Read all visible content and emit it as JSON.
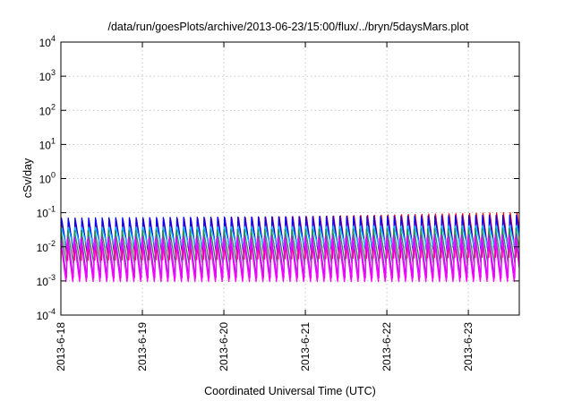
{
  "chart_data": {
    "type": "line",
    "title": "/data/run/goesPlots/archive/2013-06-23/15:00/flux/../bryn/5daysMars.plot",
    "xlabel": "Coordinated Universal Time (UTC)",
    "ylabel": "cSv/day",
    "yscale": "log",
    "ylim": [
      0.0001,
      10000
    ],
    "xlim": [
      "2013-06-18 00:00",
      "2013-06-23 15:00"
    ],
    "x_ticks": [
      "2013-6-18",
      "2013-6-19",
      "2013-6-20",
      "2013-6-21",
      "2013-6-22",
      "2013-6-23"
    ],
    "y_ticks": [
      {
        "base": "10",
        "exp": "-4"
      },
      {
        "base": "10",
        "exp": "-3"
      },
      {
        "base": "10",
        "exp": "-2"
      },
      {
        "base": "10",
        "exp": "-1"
      },
      {
        "base": "10",
        "exp": "0"
      },
      {
        "base": "10",
        "exp": "1"
      },
      {
        "base": "10",
        "exp": "2"
      },
      {
        "base": "10",
        "exp": "3"
      },
      {
        "base": "10",
        "exp": "4"
      }
    ],
    "grid": true,
    "legend": "none",
    "oscillation_period_hours": 2,
    "series": [
      {
        "color": "#ff0000",
        "peak_start": 0.065,
        "peak_end": 0.12,
        "trough_start": 0.004,
        "trough_end": 0.005
      },
      {
        "color": "#0000ff",
        "peak_start": 0.07,
        "peak_end": 0.085,
        "trough_start": 0.006,
        "trough_end": 0.006
      },
      {
        "color": "#00bfff",
        "peak_start": 0.04,
        "peak_end": 0.045,
        "trough_start": 0.009,
        "trough_end": 0.009
      },
      {
        "color": "#2e8b57",
        "peak_start": 0.03,
        "peak_end": 0.035,
        "trough_start": 0.003,
        "trough_end": 0.003
      },
      {
        "color": "#a020f0",
        "peak_start": 0.022,
        "peak_end": 0.026,
        "trough_start": 0.0012,
        "trough_end": 0.0012
      },
      {
        "color": "#ff00ff",
        "peak_start": 0.018,
        "peak_end": 0.02,
        "trough_start": 0.0008,
        "trough_end": 0.0008
      }
    ]
  }
}
